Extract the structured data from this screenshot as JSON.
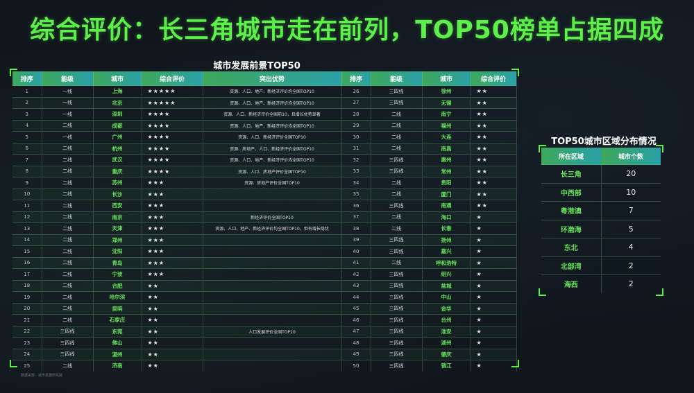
{
  "title": "综合评价：长三角城市走在前列，TOP50榜单占据四成",
  "chart_data": [
    {
      "type": "table",
      "title": "城市发展前景TOP50",
      "columns": [
        "排序",
        "能级",
        "城市",
        "综合评价",
        "突出优势",
        "排序",
        "能级",
        "城市",
        "综合评价"
      ],
      "rows_left": [
        {
          "rank": "1",
          "tier": "一线",
          "city": "上海",
          "stars": "★★★★★",
          "adv": "资源、人口、地产、新经济评价均全国TOP10"
        },
        {
          "rank": "2",
          "tier": "一线",
          "city": "北京",
          "stars": "★★★★★",
          "adv": "资源、人口、地产、新经济评价均全国TOP10"
        },
        {
          "rank": "3",
          "tier": "一线",
          "city": "深圳",
          "stars": "★★★★",
          "adv": "资源、人口、新经济评价全国前10，且增长优势显著"
        },
        {
          "rank": "4",
          "tier": "二线",
          "city": "成都",
          "stars": "★★★★",
          "adv": "资源、人口、地产、新经济评价均全国TOP10"
        },
        {
          "rank": "5",
          "tier": "一线",
          "city": "广州",
          "stars": "★★★★",
          "adv": "资源、人口、新经济评价全国TOP10"
        },
        {
          "rank": "6",
          "tier": "二线",
          "city": "杭州",
          "stars": "★★★★",
          "adv": "资源、房地产、人口、新经济评价全国TOP10"
        },
        {
          "rank": "7",
          "tier": "二线",
          "city": "武汉",
          "stars": "★★★★",
          "adv": "资源、人口、地产、新经济评价均全国TOP10"
        },
        {
          "rank": "8",
          "tier": "二线",
          "city": "重庆",
          "stars": "★★★★",
          "adv": "资源、人口、房地产评价全国TOP10"
        },
        {
          "rank": "9",
          "tier": "二线",
          "city": "苏州",
          "stars": "★★★",
          "adv": "资源、房地产评价全国TOP10"
        },
        {
          "rank": "10",
          "tier": "二线",
          "city": "长沙",
          "stars": "★★★",
          "adv": ""
        },
        {
          "rank": "11",
          "tier": "二线",
          "city": "西安",
          "stars": "★★★",
          "adv": ""
        },
        {
          "rank": "12",
          "tier": "二线",
          "city": "南京",
          "stars": "★★★",
          "adv": "新经济评价全国TOP10"
        },
        {
          "rank": "13",
          "tier": "二线",
          "city": "天津",
          "stars": "★★★",
          "adv": "资源、人口、地产、新经济评价均全国TOP10，但有增长隐忧"
        },
        {
          "rank": "14",
          "tier": "二线",
          "city": "郑州",
          "stars": "★★★",
          "adv": ""
        },
        {
          "rank": "15",
          "tier": "二线",
          "city": "沈阳",
          "stars": "★★★",
          "adv": ""
        },
        {
          "rank": "16",
          "tier": "二线",
          "city": "青岛",
          "stars": "★★★",
          "adv": ""
        },
        {
          "rank": "17",
          "tier": "二线",
          "city": "宁波",
          "stars": "★★★",
          "adv": ""
        },
        {
          "rank": "18",
          "tier": "二线",
          "city": "合肥",
          "stars": "★★",
          "adv": ""
        },
        {
          "rank": "19",
          "tier": "二线",
          "city": "哈尔滨",
          "stars": "★★",
          "adv": ""
        },
        {
          "rank": "20",
          "tier": "二线",
          "city": "昆明",
          "stars": "★★",
          "adv": ""
        },
        {
          "rank": "21",
          "tier": "二线",
          "city": "石家庄",
          "stars": "★★",
          "adv": ""
        },
        {
          "rank": "22",
          "tier": "三四线",
          "city": "东莞",
          "stars": "★★",
          "adv": "人口发展评价全国TOP10"
        },
        {
          "rank": "23",
          "tier": "三四线",
          "city": "佛山",
          "stars": "★★",
          "adv": ""
        },
        {
          "rank": "24",
          "tier": "三四线",
          "city": "温州",
          "stars": "★★",
          "adv": ""
        },
        {
          "rank": "25",
          "tier": "二线",
          "city": "济南",
          "stars": "★★",
          "adv": ""
        }
      ],
      "rows_right": [
        {
          "rank": "26",
          "tier": "三四线",
          "city": "徐州",
          "stars": "★★"
        },
        {
          "rank": "27",
          "tier": "三四线",
          "city": "无锡",
          "stars": "★★"
        },
        {
          "rank": "28",
          "tier": "二线",
          "city": "南宁",
          "stars": "★★"
        },
        {
          "rank": "29",
          "tier": "二线",
          "city": "福州",
          "stars": "★★"
        },
        {
          "rank": "30",
          "tier": "二线",
          "city": "大连",
          "stars": "★★"
        },
        {
          "rank": "31",
          "tier": "二线",
          "city": "南昌",
          "stars": "★★"
        },
        {
          "rank": "32",
          "tier": "三四线",
          "city": "惠州",
          "stars": "★★"
        },
        {
          "rank": "33",
          "tier": "三四线",
          "city": "常州",
          "stars": "★★"
        },
        {
          "rank": "34",
          "tier": "二线",
          "city": "贵阳",
          "stars": "★★"
        },
        {
          "rank": "35",
          "tier": "二线",
          "city": "厦门",
          "stars": "★★"
        },
        {
          "rank": "36",
          "tier": "三四线",
          "city": "南通",
          "stars": "★★"
        },
        {
          "rank": "37",
          "tier": "二线",
          "city": "海口",
          "stars": "★"
        },
        {
          "rank": "38",
          "tier": "二线",
          "city": "长春",
          "stars": "★"
        },
        {
          "rank": "39",
          "tier": "三四线",
          "city": "扬州",
          "stars": "★"
        },
        {
          "rank": "40",
          "tier": "三四线",
          "city": "嘉兴",
          "stars": "★"
        },
        {
          "rank": "41",
          "tier": "二线",
          "city": "呼和浩特",
          "stars": "★"
        },
        {
          "rank": "42",
          "tier": "三四线",
          "city": "绍兴",
          "stars": "★"
        },
        {
          "rank": "43",
          "tier": "三四线",
          "city": "盐城",
          "stars": "★"
        },
        {
          "rank": "44",
          "tier": "三四线",
          "city": "中山",
          "stars": "★"
        },
        {
          "rank": "45",
          "tier": "三四线",
          "city": "金华",
          "stars": "★"
        },
        {
          "rank": "46",
          "tier": "三四线",
          "city": "台州",
          "stars": "★"
        },
        {
          "rank": "47",
          "tier": "三四线",
          "city": "淮安",
          "stars": "★"
        },
        {
          "rank": "48",
          "tier": "三四线",
          "city": "湖州",
          "stars": "★"
        },
        {
          "rank": "49",
          "tier": "三四线",
          "city": "肇庆",
          "stars": "★"
        },
        {
          "rank": "50",
          "tier": "三四线",
          "city": "镇江",
          "stars": "★"
        }
      ]
    },
    {
      "type": "table",
      "title": "TOP50城市区域分布情况",
      "columns": [
        "所在区域",
        "城市个数"
      ],
      "rows": [
        {
          "region": "长三角",
          "count": 20
        },
        {
          "region": "中西部",
          "count": 10
        },
        {
          "region": "粤港澳",
          "count": 7
        },
        {
          "region": "环渤海",
          "count": 5
        },
        {
          "region": "东北",
          "count": 4
        },
        {
          "region": "北部湾",
          "count": 2
        },
        {
          "region": "海西",
          "count": 2
        }
      ]
    }
  ],
  "footnote": "数据来源：城市发展研究院"
}
